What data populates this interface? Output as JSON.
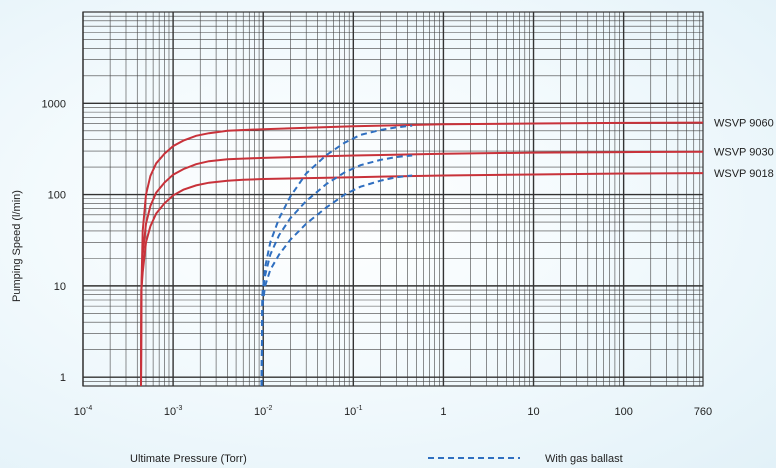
{
  "chart_data": {
    "type": "line",
    "xlabel": "Ultimate Pressure (Torr)",
    "ylabel": "Pumping Speed (l/min)",
    "x_scale": "log",
    "y_scale": "log",
    "xlim": [
      0.0001,
      760
    ],
    "ylim": [
      0.8,
      10000
    ],
    "grid": true,
    "x_ticks": [
      {
        "value": 0.0001,
        "base": "10",
        "exp": "-4"
      },
      {
        "value": 0.001,
        "base": "10",
        "exp": "-3"
      },
      {
        "value": 0.01,
        "base": "10",
        "exp": "-2"
      },
      {
        "value": 0.1,
        "base": "10",
        "exp": "-1"
      },
      {
        "value": 1,
        "base": "1",
        "exp": ""
      },
      {
        "value": 10,
        "base": "10",
        "exp": ""
      },
      {
        "value": 100,
        "base": "100",
        "exp": ""
      },
      {
        "value": 760,
        "base": "760",
        "exp": ""
      }
    ],
    "y_ticks": [
      {
        "value": 1,
        "label": "1"
      },
      {
        "value": 10,
        "label": "10"
      },
      {
        "value": 100,
        "label": "100"
      },
      {
        "value": 1000,
        "label": "1000"
      }
    ],
    "series": [
      {
        "name": "WSVP 9060",
        "color": "#c8323a",
        "style": "solid",
        "x": [
          0.00044,
          0.000445,
          0.00046,
          0.0005,
          0.00056,
          0.00065,
          0.0008,
          0.001,
          0.0013,
          0.0018,
          0.0025,
          0.004,
          0.006,
          0.01,
          0.1,
          1,
          10,
          100,
          760
        ],
        "y": [
          0.7,
          9,
          40,
          100,
          160,
          220,
          280,
          340,
          390,
          440,
          470,
          500,
          510,
          520,
          560,
          590,
          600,
          610,
          615
        ]
      },
      {
        "name": "WSVP 9030",
        "color": "#c8323a",
        "style": "solid",
        "x": [
          0.00044,
          0.000445,
          0.00046,
          0.0005,
          0.00056,
          0.00065,
          0.0008,
          0.001,
          0.0013,
          0.0018,
          0.0025,
          0.004,
          0.006,
          0.01,
          0.1,
          1,
          10,
          100,
          760
        ],
        "y": [
          0.7,
          9,
          22,
          48,
          75,
          105,
          135,
          165,
          190,
          215,
          232,
          244,
          248,
          252,
          268,
          280,
          288,
          292,
          295
        ]
      },
      {
        "name": "WSVP 9018",
        "color": "#c8323a",
        "style": "solid",
        "x": [
          0.00044,
          0.000445,
          0.00046,
          0.0005,
          0.00056,
          0.00065,
          0.0008,
          0.001,
          0.0013,
          0.0018,
          0.0025,
          0.004,
          0.006,
          0.01,
          0.1,
          1,
          10,
          100,
          760
        ],
        "y": [
          0.7,
          9,
          14,
          30,
          45,
          62,
          80,
          98,
          113,
          126,
          135,
          142,
          145,
          148,
          155,
          162,
          166,
          170,
          172
        ]
      },
      {
        "name": "",
        "color": "#2f6fc0",
        "style": "dashed",
        "x": [
          0.0096,
          0.0098,
          0.0105,
          0.012,
          0.015,
          0.02,
          0.03,
          0.05,
          0.08,
          0.12,
          0.2,
          0.3,
          0.45
        ],
        "y": [
          0.8,
          8,
          16,
          30,
          55,
          95,
          170,
          270,
          370,
          450,
          510,
          545,
          570
        ]
      },
      {
        "name": "",
        "color": "#2f6fc0",
        "style": "dashed",
        "x": [
          0.0096,
          0.0098,
          0.0105,
          0.012,
          0.015,
          0.02,
          0.03,
          0.05,
          0.08,
          0.12,
          0.2,
          0.3,
          0.45
        ],
        "y": [
          0.8,
          8,
          13,
          22,
          36,
          55,
          85,
          130,
          175,
          210,
          240,
          258,
          268
        ]
      },
      {
        "name": "",
        "color": "#2f6fc0",
        "style": "dashed",
        "x": [
          0.0096,
          0.0098,
          0.0105,
          0.012,
          0.015,
          0.02,
          0.03,
          0.05,
          0.08,
          0.12,
          0.2,
          0.3,
          0.45
        ],
        "y": [
          0.8,
          6,
          10,
          15,
          22,
          32,
          48,
          72,
          100,
          122,
          142,
          155,
          162
        ]
      }
    ],
    "legend": {
      "label": "With gas ballast",
      "style": "dashed",
      "color": "#2f6fc0",
      "position": "bottom-right"
    }
  }
}
